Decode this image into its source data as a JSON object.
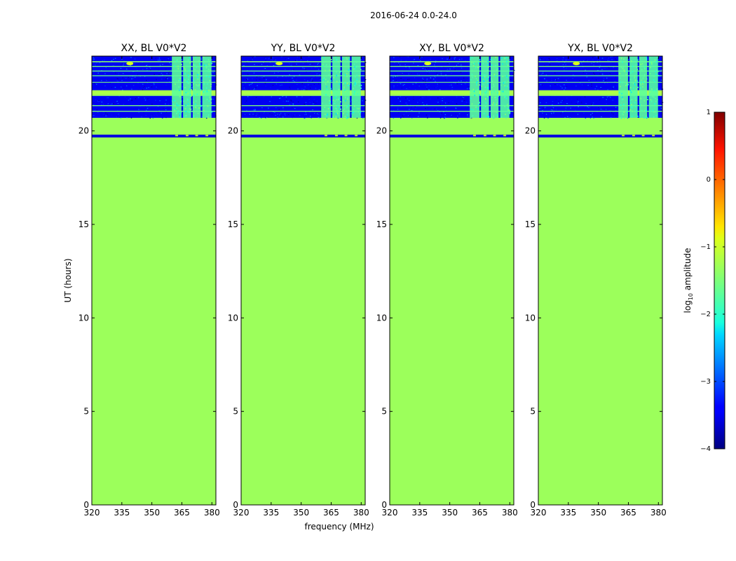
{
  "figure": {
    "suptitle": "2016-06-24 0.0-24.0",
    "xlabel": "frequency (MHz)",
    "ylabel": "UT (hours)"
  },
  "chart_data": {
    "type": "heatmap",
    "xlim": [
      320,
      382
    ],
    "ylim": [
      0,
      24
    ],
    "xticks": [
      320,
      335,
      350,
      365,
      380
    ],
    "yticks": [
      0,
      5,
      10,
      15,
      20
    ],
    "panels": [
      {
        "title": "XX, BL V0*V2"
      },
      {
        "title": "YY, BL V0*V2"
      },
      {
        "title": "XY, BL V0*V2"
      },
      {
        "title": "YX, BL V0*V2"
      }
    ],
    "background_level": -1.3,
    "data_regions": [
      {
        "t_start": 20.7,
        "t_end": 24.0,
        "level": -3.5,
        "note": "low-amplitude band"
      },
      {
        "t_start": 19.65,
        "t_end": 19.8,
        "level": -3.6,
        "note": "thin dark line"
      }
    ],
    "bright_rows": [
      {
        "t": 22.05,
        "height": 0.25,
        "level": -1.2
      },
      {
        "t": 21.9,
        "height": 0.06,
        "level": -1.3
      },
      {
        "t": 21.35,
        "height": 0.05,
        "level": -1.5
      },
      {
        "t": 21.05,
        "height": 0.05,
        "level": -1.5
      },
      {
        "t": 23.7,
        "height": 0.06,
        "level": -1.4
      },
      {
        "t": 23.45,
        "height": 0.05,
        "level": -1.5
      },
      {
        "t": 23.2,
        "height": 0.05,
        "level": -1.6
      },
      {
        "t": 22.95,
        "height": 0.05,
        "level": -1.6
      },
      {
        "t": 22.6,
        "height": 0.04,
        "level": -1.5
      }
    ],
    "rfi_freq_bands": [
      {
        "f_start": 360.0,
        "f_end": 364.8,
        "level": -1.7
      },
      {
        "f_start": 365.6,
        "f_end": 369.6,
        "level": -1.75
      },
      {
        "f_start": 370.4,
        "f_end": 374.4,
        "level": -1.7
      },
      {
        "f_start": 375.2,
        "f_end": 379.8,
        "level": -1.75
      }
    ],
    "rfi_time_range": [
      20.7,
      24.0
    ],
    "hotspot": {
      "freq": 339.0,
      "t": 23.6,
      "level": -0.9
    },
    "colorbar": {
      "label": "log10 amplitude",
      "range": [
        -4,
        1
      ],
      "ticks": [
        -4,
        -3,
        -2,
        -1,
        0,
        1
      ],
      "tick_labels": [
        "−4",
        "−3",
        "−2",
        "−1",
        "0",
        "1"
      ],
      "colormap": "jet"
    }
  }
}
